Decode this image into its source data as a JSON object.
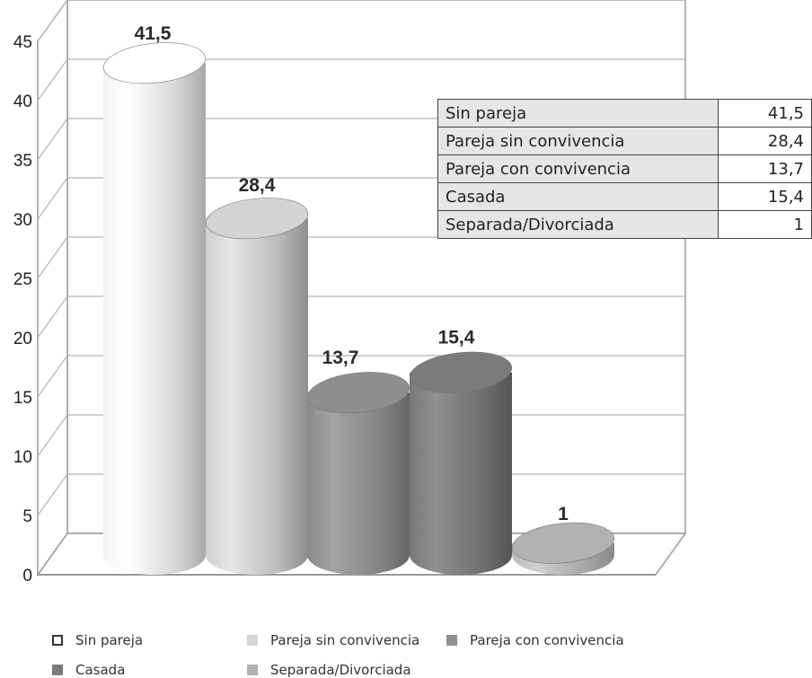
{
  "chart_data": {
    "type": "bar",
    "categories": [
      "Sin pareja",
      "Pareja sin convivencia",
      "Pareja con convivencia",
      "Casada",
      "Separada/Divorciada"
    ],
    "values": [
      41.5,
      28.4,
      13.7,
      15.4,
      1
    ],
    "data_labels": [
      "41,5",
      "28,4",
      "13,7",
      "15,4",
      "1"
    ],
    "ylim": [
      0,
      45
    ],
    "yticks": [
      "0",
      "5",
      "10",
      "15",
      "20",
      "25",
      "30",
      "35",
      "40",
      "45"
    ],
    "grid": true,
    "legend_position": "bottom",
    "bar_colors": [
      "#ffffff",
      "#d4d4d4",
      "#8f8f8f",
      "#7b7b7b",
      "#b2b2b2"
    ],
    "table": [
      {
        "label": "Sin pareja",
        "value": "41,5"
      },
      {
        "label": "Pareja sin convivencia",
        "value": "28,4"
      },
      {
        "label": "Pareja con convivencia",
        "value": "13,7"
      },
      {
        "label": "Casada",
        "value": "15,4"
      },
      {
        "label": "Separada/Divorciada",
        "value": "1"
      }
    ]
  },
  "legend": [
    {
      "label": "Sin pareja",
      "color": "#ffffff"
    },
    {
      "label": "Pareja sin convivencia",
      "color": "#d4d4d4"
    },
    {
      "label": "Pareja con convivencia",
      "color": "#8f8f8f"
    },
    {
      "label": "Casada",
      "color": "#7b7b7b"
    },
    {
      "label": "Separada/Divorciada",
      "color": "#b2b2b2"
    }
  ]
}
